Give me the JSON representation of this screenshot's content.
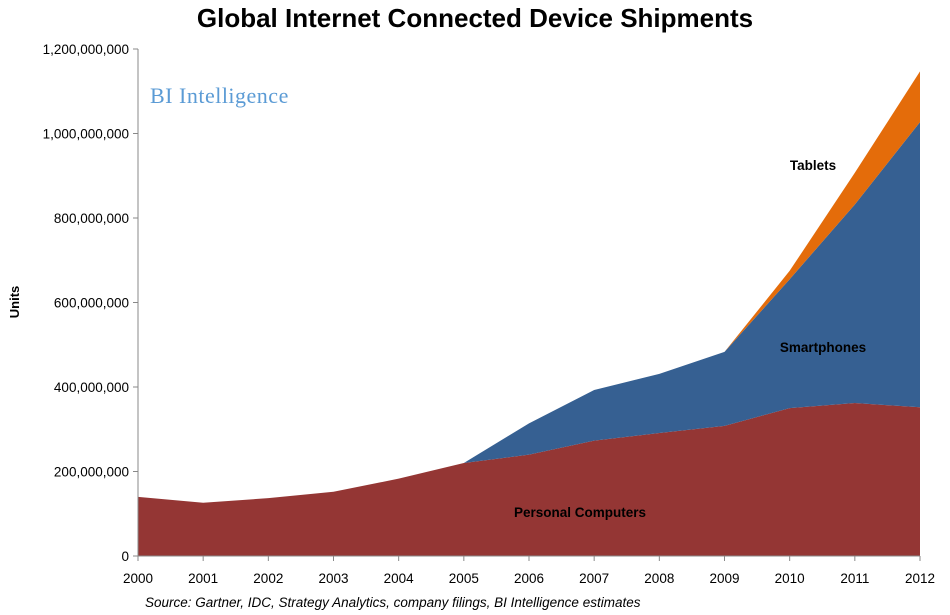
{
  "chart_data": {
    "type": "area",
    "stacked": true,
    "title": "Global Internet Connected Device Shipments",
    "ylabel": "Units",
    "xlabel": "",
    "ylim": [
      0,
      1200000000
    ],
    "y_ticks": [
      0,
      200000000,
      400000000,
      600000000,
      800000000,
      1000000000,
      1200000000
    ],
    "y_tick_labels": [
      "0",
      "200,000,000",
      "400,000,000",
      "600,000,000",
      "800,000,000",
      "1,000,000,000",
      "1,200,000,000"
    ],
    "grid": false,
    "x": [
      "2000",
      "2001",
      "2002",
      "2003",
      "2004",
      "2005",
      "2006",
      "2007",
      "2008",
      "2009",
      "2010",
      "2011",
      "2012"
    ],
    "series": [
      {
        "name": "Personal Computers",
        "color": "#943634",
        "values": [
          140000000,
          126000000,
          137000000,
          152000000,
          183000000,
          220000000,
          240000000,
          273000000,
          291000000,
          308000000,
          350000000,
          362000000,
          352000000
        ]
      },
      {
        "name": "Smartphones",
        "color": "#366092",
        "values": [
          0,
          0,
          0,
          0,
          0,
          0,
          74000000,
          120000000,
          140000000,
          175000000,
          305000000,
          470000000,
          675000000
        ]
      },
      {
        "name": "Tablets",
        "color": "#e46c0a",
        "values": [
          0,
          0,
          0,
          0,
          0,
          0,
          0,
          0,
          0,
          0,
          20000000,
          75000000,
          120000000
        ]
      }
    ],
    "annotations": [
      "BI Intelligence"
    ],
    "source": "Source: Gartner, IDC, Strategy Analytics, company filings, BI Intelligence estimates"
  }
}
